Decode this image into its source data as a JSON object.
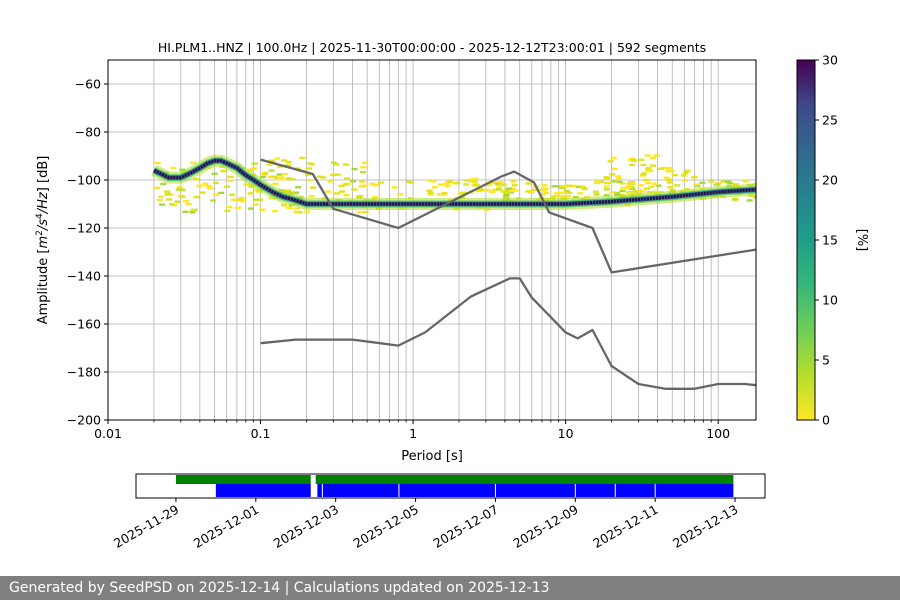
{
  "chart_data": [
    {
      "type": "heatmap",
      "title": "HI.PLM1..HNZ | 100.0Hz | 2025-11-30T00:00:00 - 2025-12-12T23:00:01 | 592 segments",
      "xlabel": "Period [s]",
      "ylabel_parts": [
        "Amplitude [",
        "m",
        "2",
        "/",
        "s",
        "4",
        "/",
        "Hz",
        "] [dB]"
      ],
      "x_scale": "log",
      "xlim": [
        0.01,
        177
      ],
      "ylim": [
        -200,
        -50
      ],
      "x_ticks": [
        0.01,
        0.1,
        1,
        10,
        100
      ],
      "x_tick_labels": [
        "0.01",
        "0.1",
        "1",
        "10",
        "100"
      ],
      "y_ticks": [
        -200,
        -180,
        -160,
        -140,
        -120,
        -100,
        -80,
        -60
      ],
      "y_tick_labels": [
        "−200",
        "−180",
        "−160",
        "−140",
        "−120",
        "−100",
        "−80",
        "−60"
      ],
      "grid": true,
      "colormap": "viridis_r",
      "colorbar": {
        "label": "[%]",
        "range": [
          0,
          30
        ],
        "ticks": [
          0,
          5,
          10,
          15,
          20,
          25,
          30
        ],
        "tick_labels": [
          "0",
          "5",
          "10",
          "15",
          "20",
          "25",
          "30"
        ]
      },
      "mode_line": {
        "period": [
          0.02,
          0.025,
          0.03,
          0.035,
          0.04,
          0.045,
          0.05,
          0.055,
          0.06,
          0.07,
          0.08,
          0.09,
          0.1,
          0.12,
          0.14,
          0.16,
          0.18,
          0.2,
          0.25,
          0.3,
          0.5,
          1,
          2,
          5,
          10,
          20,
          50,
          100,
          177
        ],
        "db": [
          -96,
          -99,
          -99,
          -97,
          -95,
          -93,
          -92,
          -92,
          -93,
          -95,
          -98,
          -100,
          -102,
          -105,
          -107,
          -108,
          -109,
          -110,
          -110,
          -110,
          -110,
          -110,
          -110,
          -110,
          -110,
          -109,
          -107,
          -105,
          -104
        ]
      },
      "scatter_bands": [
        {
          "period": [
            0.02,
            0.5
          ],
          "db": [
            -92,
            -113
          ],
          "intensity": 2
        },
        {
          "period": [
            0.1,
            0.25
          ],
          "db": [
            -90,
            -100
          ],
          "intensity": 1
        },
        {
          "period": [
            0.3,
            3
          ],
          "db": [
            -100,
            -112
          ],
          "intensity": 1
        },
        {
          "period": [
            1.2,
            4
          ],
          "db": [
            -99,
            -105
          ],
          "intensity": 1
        },
        {
          "period": [
            3,
            30
          ],
          "db": [
            -100,
            -110
          ],
          "intensity": 2
        },
        {
          "period": [
            17,
            40
          ],
          "db": [
            -89,
            -99
          ],
          "intensity": 1
        },
        {
          "period": [
            30,
            70
          ],
          "db": [
            -93,
            -100
          ],
          "intensity": 1
        },
        {
          "period": [
            20,
            177
          ],
          "db": [
            -100,
            -108
          ],
          "intensity": 2
        }
      ],
      "series": [
        {
          "x": [
            0.1,
            0.22,
            0.3,
            0.8,
            3.8,
            4.6,
            6.2,
            7.8,
            15,
            20,
            177
          ],
          "y": [
            -91.5,
            -97.5,
            -112,
            -120,
            -98.5,
            -96.5,
            -101,
            -113.5,
            -120,
            -138.5,
            -129
          ]
        },
        {
          "x": [
            0.1,
            0.17,
            0.4,
            0.8,
            1.2,
            2.4,
            4.3,
            5,
            6,
            10,
            12,
            15,
            20,
            30,
            45,
            70,
            100,
            150,
            177
          ],
          "y": [
            -168,
            -166.5,
            -166.5,
            -169,
            -163.5,
            -148.5,
            -141,
            -141,
            -149,
            -163.5,
            -166,
            -162.5,
            -177.5,
            -185,
            -187,
            -187,
            -185,
            -185,
            -185.5
          ]
        }
      ]
    },
    {
      "type": "bar",
      "subtype": "timeline",
      "x_range": [
        "2025-11-28",
        "2025-12-13 18:00"
      ],
      "x_ticks": [
        "2025-11-29",
        "2025-12-01",
        "2025-12-03",
        "2025-12-05",
        "2025-12-07",
        "2025-12-09",
        "2025-12-11",
        "2025-12-13"
      ],
      "tracks": [
        {
          "color": "#008000",
          "segments": [
            [
              "2025-11-29 00:00",
              "2025-12-02 09:00"
            ],
            [
              "2025-12-02 12:00",
              "2025-12-12 23:00"
            ]
          ]
        },
        {
          "color": "#0000ff",
          "segments": [
            [
              "2025-11-30 00:00",
              "2025-12-02 09:00"
            ],
            [
              "2025-12-02 13:00",
              "2025-12-12 23:00"
            ]
          ],
          "gap_marks": [
            "2025-12-02 16:00",
            "2025-12-04 14:00",
            "2025-12-07 00:00",
            "2025-12-09 00:00",
            "2025-12-10 00:00",
            "2025-12-11 00:00"
          ]
        }
      ]
    }
  ],
  "footer": {
    "text": "Generated by SeedPSD on 2025-12-14 | Calculations updated on 2025-12-13"
  },
  "colors": {
    "gray_line": "#666666",
    "grid": "#b0b0b0",
    "footer_bg": "#808080"
  }
}
